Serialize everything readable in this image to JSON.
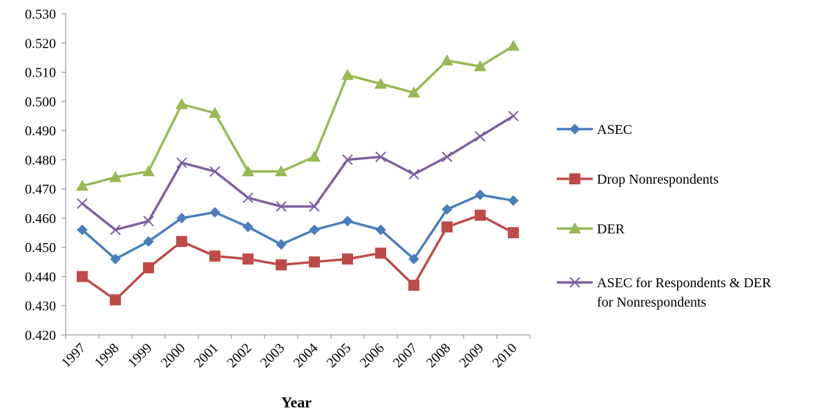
{
  "chart_data": {
    "type": "line",
    "xlabel": "Year",
    "ylabel": "",
    "title": "",
    "categories": [
      "1997",
      "1998",
      "1999",
      "2000",
      "2001",
      "2002",
      "2003",
      "2004",
      "2005",
      "2006",
      "2007",
      "2008",
      "2009",
      "2010"
    ],
    "ylim": [
      0.42,
      0.53
    ],
    "yticks": [
      "0.420",
      "0.430",
      "0.440",
      "0.450",
      "0.460",
      "0.470",
      "0.480",
      "0.490",
      "0.500",
      "0.510",
      "0.520",
      "0.530"
    ],
    "grid": false,
    "legend_position": "right",
    "series": [
      {
        "name": "ASEC",
        "color": "#4a7ebb",
        "marker": "diamond",
        "values": [
          0.456,
          0.446,
          0.452,
          0.46,
          0.462,
          0.457,
          0.451,
          0.456,
          0.459,
          0.456,
          0.446,
          0.463,
          0.468,
          0.466
        ]
      },
      {
        "name": "Drop Nonrespondents",
        "color": "#be4b48",
        "marker": "square",
        "values": [
          0.44,
          0.432,
          0.443,
          0.452,
          0.447,
          0.446,
          0.444,
          0.445,
          0.446,
          0.448,
          0.437,
          0.457,
          0.461,
          0.455
        ]
      },
      {
        "name": "DER",
        "color": "#98b954",
        "marker": "triangle",
        "values": [
          0.471,
          0.474,
          0.476,
          0.499,
          0.496,
          0.476,
          0.476,
          0.481,
          0.509,
          0.506,
          0.503,
          0.514,
          0.512,
          0.519
        ]
      },
      {
        "name": "ASEC for Respondents & DER for Nonrespondents",
        "color": "#7d60a0",
        "marker": "x",
        "values": [
          0.465,
          0.456,
          0.459,
          0.479,
          0.476,
          0.467,
          0.464,
          0.464,
          0.48,
          0.481,
          0.475,
          0.481,
          0.488,
          0.495
        ]
      }
    ],
    "legend_lines": [
      [
        "ASEC"
      ],
      [
        "Drop Nonrespondents"
      ],
      [
        "DER"
      ],
      [
        "ASEC for Respondents & DER",
        "for Nonrespondents"
      ]
    ]
  }
}
